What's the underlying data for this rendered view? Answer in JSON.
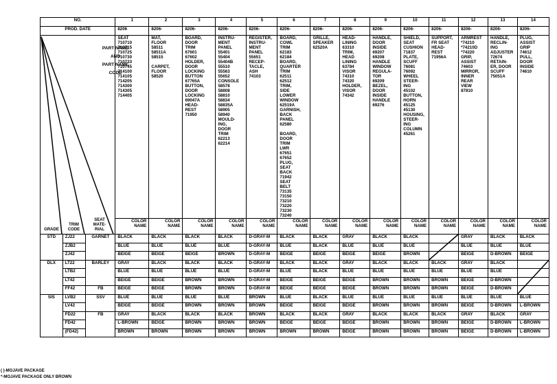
{
  "table": {
    "header": {
      "no_label": "NO.",
      "prod_date_label": "PROD. DATE",
      "part_label_lines": [
        "PART NAME",
        "AND",
        "PART NAME",
        "CODE"
      ],
      "grade_label": "GRADE",
      "trim_code_label": "TRIM\nCODE",
      "seat_material_label": "SEAT\nMATE-\nRIAL",
      "color_name_label": "COLOR\nNAME"
    },
    "columns": [
      {
        "no": "1",
        "prod_date": "8206",
        "parts": "SEAT\n 710710\n 710715\n 710725\n 710730\n 710733\n 710745\n 714100\n 714105\n 714205\n 714300\n 714305\n 714405"
      },
      {
        "no": "2",
        "prod_date": "8206-",
        "parts": "MAT,\n    FLOOR\n58511\n58511A\n58515\n\nCARPET,\n    FLOOR\n58520"
      },
      {
        "no": "3",
        "prod_date": "8206-",
        "parts": "BOARD,\n DOOR\n      TRIM\n67601\n67602\nHOLDER,\n DOOR\n LOCKING\n  BUTTON\n 67765A\nBUTTON,\nDOOR\n LOCKING\n 69047A\nHEAD-\n      REST\n 71950"
      },
      {
        "no": "4",
        "prod_date": "8206-",
        "parts": "INSTRU-\n MENT\n    PANEL\n55401\n55404\n55404B\n55510\n55563\n55652\nCONSOLE\n 58578\n 58808\n 58810\n 58834\n 58835A\n 58905\n 58940\nMOULD-\n ING,\n DOOR\n      TRIM\n62213\n62214"
      },
      {
        "no": "5",
        "prod_date": "8206-",
        "parts": "REGISTER,\n INSTRU-\n MENT\n    PANEL\n 55651\nRECEP-\n TACLE,\n      ASH\n 74103"
      },
      {
        "no": "6",
        "prod_date": "8206-",
        "parts": "BOARD,\n COWL\n      TRIM\n 62183\n 62184\nBOARD,\nQUARTER\n     TRIM\n 62511\n 62512\nTRIM,\n SIDE\n  LOWER\n  WINDOW\n 62519A\nGARNISH,\n BACK\n    PANEL\n 62580\n\nBOARD,\n DOOR\n TRIM\n      LWR\n 67651\n 67652\nPLUG,\n SEAT\n     BACK\n 71942\nSEAT\n      BELT\n 73135\n 73150\n 73210\n 73220\n 73230\n 73240"
      },
      {
        "no": "7",
        "prod_date": "8206-",
        "parts": "GRILLE,\nSPEAKER\n 62520A"
      },
      {
        "no": "8",
        "prod_date": "8206-",
        "parts": "HEAD-\n   LINING\n 63310\nTRIM,\n HEAD\n   LINING\n 63784\nVISOR\n 74310\n 74320\nHOLDER,\n     VISOR\n 74342"
      },
      {
        "no": "9",
        "prod_date": "8206-",
        "parts": "HANDLE,\n DOOR\n    INSIDE\n 69207\n 69208\nHANDLE\nWINDOW\n  REGULA-\n      TOR\n 69209\nBEZEL,\n DOOR\n  INSIDE\n HANDLE\n 69276"
      },
      {
        "no": "10",
        "prod_date": "8206-",
        "parts": "SHIELD,\n SEAT\n CUSHION\n 71837\nPLATE,\n   SCUFF\n 76081\n 76092\nWHEEL\n STEER-\n      ING\n 45102\nBUTTON,\n    HORN\n 45125\n 45130\nHOUSING,\nSTEER-\n ING\n COLUMN\n 45261"
      },
      {
        "no": "11",
        "prod_date": "8206-",
        "parts": "SUPPORT,\nFR SEAT\n HEAD-\n     REST\n 71956A"
      },
      {
        "no": "12",
        "prod_date": "8206-",
        "parts": "ARMREST\n*74210\n*74210D\n*74220\nGRIP,\n   ASSIST\n 74603\nMIRROR,\n INNER\n  REAR\n     VIEW\n 87810"
      },
      {
        "no": "13",
        "prod_date": "8206-",
        "parts": "HANDLE,\nRECLIN-\n ING\n ADJUSTER\n 72674\nRETAIN-\nER, DOOR\n    SCUFF\n 75051A"
      },
      {
        "no": "14",
        "prod_date": "8206-",
        "parts": "PLUG,\n ASSIST\n     GRIP\n 74612\nPULL,\n DOOR\n   INSIDE\n 74610"
      }
    ],
    "groups": [
      {
        "grade": "STD",
        "materials": [
          {
            "name": "GARNET",
            "rows": 3
          }
        ]
      },
      {
        "grade": "DLX",
        "materials": [
          {
            "name": "BARLEY",
            "rows": 3
          },
          {
            "name": "FB",
            "rows": 1
          }
        ]
      },
      {
        "grade": "SIS",
        "materials": [
          {
            "name": "SSV",
            "rows": 2
          },
          {
            "name": "FB",
            "rows": 3
          }
        ]
      }
    ],
    "rows": [
      {
        "trim": "ZJ22",
        "colors": [
          "BLACK",
          "BLACK",
          "BLACK",
          "BLACK",
          "D-GRAY-M",
          "BLACK",
          "BLACK",
          "GRAY",
          "BLACK",
          "BLACK",
          "",
          "GRAY",
          "BLACK",
          "BLACK"
        ]
      },
      {
        "trim": "ZJB2",
        "colors": [
          "BLUE",
          "BLUE",
          "BLUE",
          "BLUE",
          "D-GRAY-M",
          "BLUE",
          "BLACK",
          "BLUE",
          "BLUE",
          "BLUE",
          "",
          "BLUE",
          "BLUE",
          "BLUE"
        ]
      },
      {
        "trim": "ZJ42",
        "colors": [
          "BEIGE",
          "BEIGE",
          "BEIGE",
          "BROWN",
          "D-GRAY-M",
          "BEIGE",
          "BEIGE",
          "BEIGE",
          "BEIGE",
          "BROWN",
          "",
          "BEIGE",
          "D-BROWN",
          "BEIGE"
        ]
      },
      {
        "trim": "LT22",
        "colors": [
          "GRAY",
          "BLACK",
          "BLACK",
          "BLACK",
          "D-GRAY-M",
          "BLACK",
          "BLACK",
          "GRAY",
          "BLACK",
          "BLACK",
          "BLACK",
          "GRAY",
          "BLACK",
          ""
        ]
      },
      {
        "trim": "LTB2",
        "colors": [
          "BLUE",
          "BLUE",
          "BLUE",
          "BLUE",
          "D-GRAY-M",
          "BLUE",
          "BLACK",
          "BLUE",
          "BLUE",
          "BLUE",
          "BLUE",
          "BLUE",
          "BLUE",
          ""
        ]
      },
      {
        "trim": "LT42",
        "colors": [
          "BEIGE",
          "BEIGE",
          "BROWN",
          "BROWN",
          "D-GRAY-M",
          "BEIGE",
          "BEIGE",
          "BEIGE",
          "BROWN",
          "BROWN",
          "BROWN",
          "BEIGE",
          "D-BROWN",
          ""
        ]
      },
      {
        "trim": "FF42",
        "colors": [
          "BEIGE",
          "BEIGE",
          "BROWN",
          "BROWN",
          "D-GRAY-M",
          "BEIGE",
          "BEIGE",
          "BEIGE",
          "BROWN",
          "BROWN",
          "BROWN",
          "BEIGE",
          "D-BROWN",
          ""
        ]
      },
      {
        "trim": "LVB2",
        "colors": [
          "BLUE",
          "BLUE",
          "BLUE",
          "BLUE",
          "BROWN",
          "BLUE",
          "BLACK",
          "BLUE",
          "BLUE",
          "BLUE",
          "BLUE",
          "BLUE",
          "BLUE",
          "BLUE"
        ]
      },
      {
        "trim": "LV42",
        "colors": [
          "BEIGE",
          "BEIGE",
          "BROWN",
          "BROWN",
          "BROWN",
          "BEIGE",
          "BEIGE",
          "BEIGE",
          "BROWN",
          "BROWN",
          "BROWN",
          "BEIGE",
          "D-BROWN",
          "L-BROWN"
        ]
      },
      {
        "trim": "FD22",
        "colors": [
          "GRAY",
          "BLACK",
          "BLACK",
          "BLACK",
          "BROWN",
          "BLACK",
          "BLACK",
          "GRAY",
          "BLACK",
          "BLACK",
          "BLACK",
          "GRAY",
          "BLACK",
          "GRAY"
        ]
      },
      {
        "trim": "FD42",
        "colors": [
          "L-BROWN",
          "BEIGE",
          "BROWN",
          "BROWN",
          "BROWN",
          "BEIGE",
          "BEIGE",
          "BEIGE",
          "BROWN",
          "BROWN",
          "BROWN",
          "BEIGE",
          "D-BROWN",
          "L-BROWN"
        ]
      },
      {
        "trim": "(FD42)",
        "colors": [
          "BROWN",
          "BROWN",
          "BROWN",
          "BROWN",
          "BROWN",
          "BROWN",
          "BROWN",
          "BEIGE",
          "BROWN",
          "BROWN",
          "BROWN",
          "BEIGE",
          "D-BROWN",
          "L-BROWN"
        ]
      }
    ]
  },
  "notes": [
    "(    )-MOJAVE PACKAGE",
    "*-MOJAVE PACKAGE ONLY BROWN"
  ]
}
